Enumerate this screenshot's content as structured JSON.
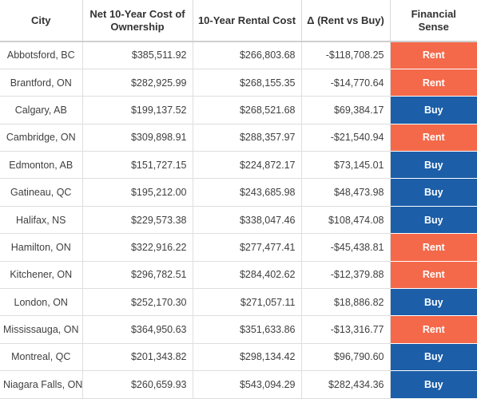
{
  "colors": {
    "rent": "#f4694a",
    "buy": "#1c5ea8"
  },
  "headers": {
    "city": "City",
    "ownership": "Net 10-Year Cost of Ownership",
    "rental": "10-Year Rental Cost",
    "delta": "Δ (Rent vs Buy)",
    "sense": "Financial Sense"
  },
  "rows": [
    {
      "city": "Abbotsford, BC",
      "ownership": "$385,511.92",
      "rental": "$266,803.68",
      "delta": "-$118,708.25",
      "sense": "Rent"
    },
    {
      "city": "Brantford, ON",
      "ownership": "$282,925.99",
      "rental": "$268,155.35",
      "delta": "-$14,770.64",
      "sense": "Rent"
    },
    {
      "city": "Calgary, AB",
      "ownership": "$199,137.52",
      "rental": "$268,521.68",
      "delta": "$69,384.17",
      "sense": "Buy"
    },
    {
      "city": "Cambridge, ON",
      "ownership": "$309,898.91",
      "rental": "$288,357.97",
      "delta": "-$21,540.94",
      "sense": "Rent"
    },
    {
      "city": "Edmonton, AB",
      "ownership": "$151,727.15",
      "rental": "$224,872.17",
      "delta": "$73,145.01",
      "sense": "Buy"
    },
    {
      "city": "Gatineau, QC",
      "ownership": "$195,212.00",
      "rental": "$243,685.98",
      "delta": "$48,473.98",
      "sense": "Buy"
    },
    {
      "city": "Halifax, NS",
      "ownership": "$229,573.38",
      "rental": "$338,047.46",
      "delta": "$108,474.08",
      "sense": "Buy"
    },
    {
      "city": "Hamilton, ON",
      "ownership": "$322,916.22",
      "rental": "$277,477.41",
      "delta": "-$45,438.81",
      "sense": "Rent"
    },
    {
      "city": "Kitchener, ON",
      "ownership": "$296,782.51",
      "rental": "$284,402.62",
      "delta": "-$12,379.88",
      "sense": "Rent"
    },
    {
      "city": "London, ON",
      "ownership": "$252,170.30",
      "rental": "$271,057.11",
      "delta": "$18,886.82",
      "sense": "Buy"
    },
    {
      "city": "Mississauga, ON",
      "ownership": "$364,950.63",
      "rental": "$351,633.86",
      "delta": "-$13,316.77",
      "sense": "Rent"
    },
    {
      "city": "Montreal, QC",
      "ownership": "$201,343.82",
      "rental": "$298,134.42",
      "delta": "$96,790.60",
      "sense": "Buy"
    },
    {
      "city": "Niagara Falls, ON",
      "ownership": "$260,659.93",
      "rental": "$543,094.29",
      "delta": "$282,434.36",
      "sense": "Buy"
    }
  ]
}
